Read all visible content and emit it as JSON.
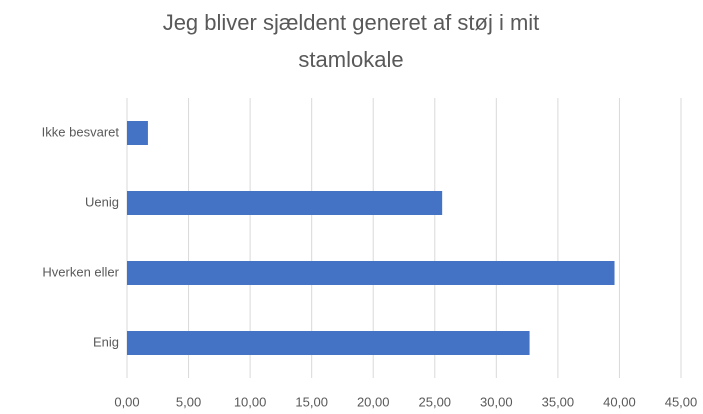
{
  "chart_data": {
    "type": "bar",
    "orientation": "horizontal",
    "title": "Jeg bliver sjældent generet af støj i mit stamlokale",
    "categories": [
      "Ikke besvaret",
      "Uenig",
      "Hverken eller",
      "Enig"
    ],
    "values": [
      1.7,
      25.6,
      39.6,
      32.7
    ],
    "color": "#4472c4",
    "xlim": [
      0,
      45
    ],
    "xticks": [
      {
        "value": 0,
        "label": "0,00"
      },
      {
        "value": 5,
        "label": "5,00"
      },
      {
        "value": 10,
        "label": "10,00"
      },
      {
        "value": 15,
        "label": "15,00"
      },
      {
        "value": 20,
        "label": "20,00"
      },
      {
        "value": 25,
        "label": "25,00"
      },
      {
        "value": 30,
        "label": "30,00"
      },
      {
        "value": 35,
        "label": "35,00"
      },
      {
        "value": 40,
        "label": "40,00"
      },
      {
        "value": 45,
        "label": "45,00"
      }
    ],
    "grid": true
  }
}
